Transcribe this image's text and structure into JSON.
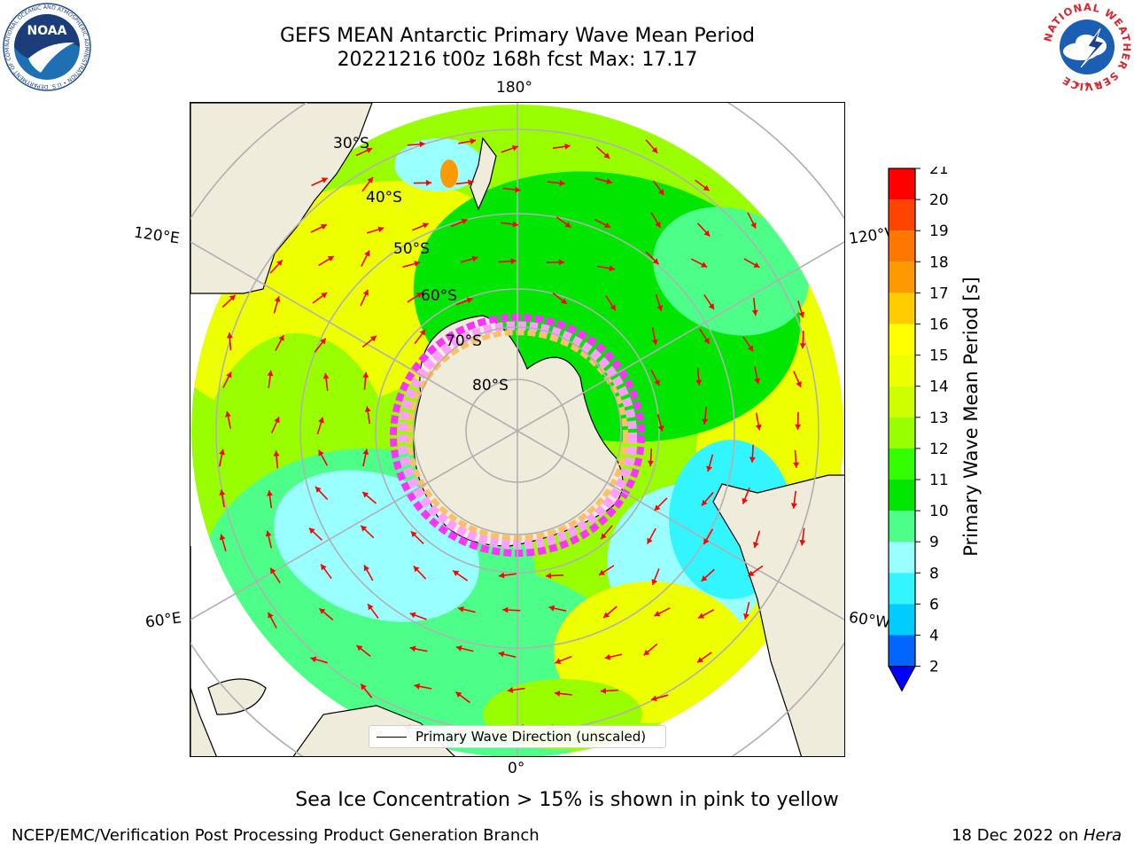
{
  "title": {
    "line1": "GEFS MEAN Antarctic Primary Wave Mean Period",
    "line2": "20221216 t00z 168h fcst   Max: 17.17"
  },
  "logos": {
    "left": {
      "name": "noaa-logo",
      "text": "NOAA",
      "ring_text": "NATIONAL OCEANIC AND ATMOSPHERIC ADMINISTRATION • U.S. DEPARTMENT OF COMMERCE •",
      "color": "#1f6fb5"
    },
    "right": {
      "name": "nws-logo",
      "ring_text": "NATIONAL WEATHER SERVICE",
      "color": "#d7262e"
    }
  },
  "map": {
    "projection": "south-polar-stereographic",
    "latitude_labels": [
      "30°S",
      "40°S",
      "50°S",
      "60°S",
      "70°S",
      "80°S"
    ],
    "longitude_labels": {
      "top": "180°",
      "bottom": "0°",
      "upper_left": "120°E",
      "upper_right": "120°W",
      "lower_left": "60°E",
      "lower_right": "60°W"
    },
    "legend": "Primary Wave Direction (unscaled)",
    "arrow_color": "#ff0000",
    "land_color": "#efecdb",
    "sea_ice_colors": [
      "#ff33ff",
      "#ffa0ff",
      "#ffbf66",
      "#ffffff"
    ]
  },
  "colorbar": {
    "title": "Primary Wave Mean Period [s]",
    "ticks": [
      "2",
      "4",
      "6",
      "8",
      "9",
      "10",
      "11",
      "12",
      "13",
      "14",
      "15",
      "16",
      "17",
      "18",
      "19",
      "20",
      "21"
    ],
    "colors": [
      "#0066ff",
      "#00ccff",
      "#33f5ff",
      "#99ffff",
      "#4dff88",
      "#00e600",
      "#33ff00",
      "#99ff00",
      "#ccff00",
      "#eeff00",
      "#ffff00",
      "#ffcc00",
      "#ff9900",
      "#ff7700",
      "#ff4400",
      "#ff0000"
    ],
    "under_color": "#0000ff"
  },
  "footnote": "Sea Ice Concentration > 15% is shown in pink to yellow",
  "credit": "NCEP/EMC/Verification Post Processing Product Generation Branch",
  "run_date": {
    "date": "18 Dec 2022 on ",
    "host": "Hera"
  }
}
